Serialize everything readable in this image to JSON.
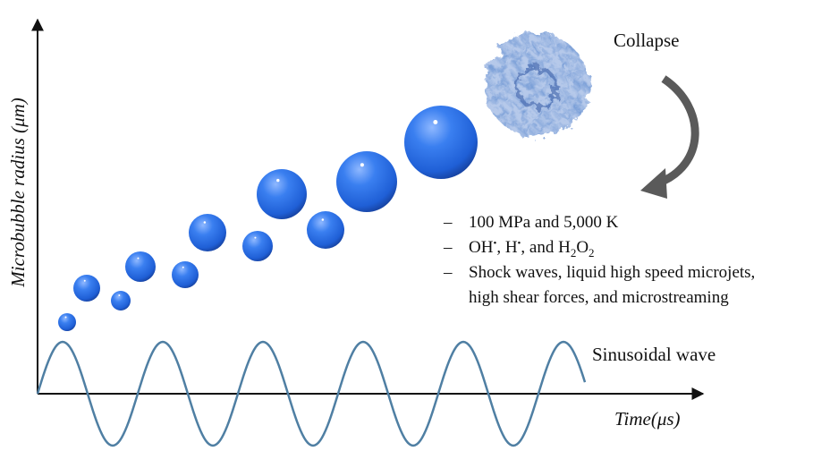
{
  "y_axis_label": "Microbubble radius (μm)",
  "x_axis_label": "Time(μs)",
  "collapse_label": "Collapse",
  "wave_label": "Sinusoidal wave",
  "bullets": {
    "marker": "–",
    "item_1": "100 MPa and 5,000 K",
    "item_2": [
      "OH",
      "•",
      ", H",
      "•",
      ", and H",
      "2",
      "O",
      "2"
    ],
    "item_3": [
      "Shock waves, liquid high speed microjets,",
      "high shear forces, and microstreaming"
    ]
  }
}
